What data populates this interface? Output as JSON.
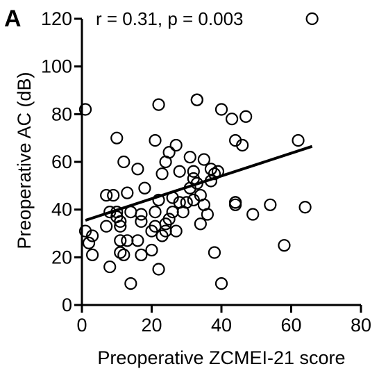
{
  "chart_data": {
    "type": "scatter",
    "panel_label": "A",
    "title": "",
    "annotation": "r = 0.31, p = 0.003",
    "xlabel": "Preoperative ZCMEI-21 score",
    "ylabel": "Preoperative AC (dB)",
    "xlim": [
      0,
      80
    ],
    "ylim": [
      0,
      120
    ],
    "xticks": [
      0,
      20,
      40,
      60,
      80
    ],
    "yticks": [
      0,
      20,
      40,
      60,
      80,
      100,
      120
    ],
    "grid": false,
    "marker": "open-circle",
    "regression_line": {
      "x": [
        1,
        66
      ],
      "y": [
        35.5,
        66.5
      ]
    },
    "points": [
      [
        1,
        82
      ],
      [
        1,
        31
      ],
      [
        2,
        26
      ],
      [
        3,
        21
      ],
      [
        3,
        29
      ],
      [
        7,
        46
      ],
      [
        7,
        33
      ],
      [
        8,
        16
      ],
      [
        8,
        39
      ],
      [
        9,
        46
      ],
      [
        10,
        70
      ],
      [
        10,
        39
      ],
      [
        10,
        37
      ],
      [
        11,
        35
      ],
      [
        11,
        33
      ],
      [
        11,
        27
      ],
      [
        11,
        22
      ],
      [
        12,
        60
      ],
      [
        12,
        21
      ],
      [
        13,
        47
      ],
      [
        13,
        27
      ],
      [
        14,
        9
      ],
      [
        14,
        39
      ],
      [
        16,
        57
      ],
      [
        16,
        27
      ],
      [
        17,
        21
      ],
      [
        17,
        38
      ],
      [
        17,
        35
      ],
      [
        18,
        49
      ],
      [
        20,
        23
      ],
      [
        20,
        31
      ],
      [
        21,
        33
      ],
      [
        21,
        39
      ],
      [
        21,
        69
      ],
      [
        22,
        84
      ],
      [
        22,
        15
      ],
      [
        22,
        44
      ],
      [
        23,
        55
      ],
      [
        23,
        29
      ],
      [
        24,
        34
      ],
      [
        24,
        31
      ],
      [
        24,
        60
      ],
      [
        25,
        64
      ],
      [
        25,
        36
      ],
      [
        26,
        45
      ],
      [
        26,
        39
      ],
      [
        27,
        67
      ],
      [
        27,
        31
      ],
      [
        28,
        56
      ],
      [
        28,
        43
      ],
      [
        29,
        39
      ],
      [
        30,
        43
      ],
      [
        31,
        62
      ],
      [
        31,
        49
      ],
      [
        32,
        56
      ],
      [
        32,
        53
      ],
      [
        32,
        44
      ],
      [
        33,
        86
      ],
      [
        33,
        86
      ],
      [
        33,
        51
      ],
      [
        34,
        46
      ],
      [
        34,
        34
      ],
      [
        35,
        61
      ],
      [
        35,
        42
      ],
      [
        36,
        38
      ],
      [
        37,
        57
      ],
      [
        37,
        52
      ],
      [
        38,
        55
      ],
      [
        38,
        22
      ],
      [
        39,
        56
      ],
      [
        40,
        82
      ],
      [
        40,
        9
      ],
      [
        43,
        78
      ],
      [
        44,
        69
      ],
      [
        44,
        43
      ],
      [
        44,
        43
      ],
      [
        44,
        42
      ],
      [
        46,
        67
      ],
      [
        47,
        79
      ],
      [
        49,
        38
      ],
      [
        54,
        42
      ],
      [
        58,
        25
      ],
      [
        62,
        69
      ],
      [
        64,
        41
      ],
      [
        66,
        120
      ]
    ]
  }
}
